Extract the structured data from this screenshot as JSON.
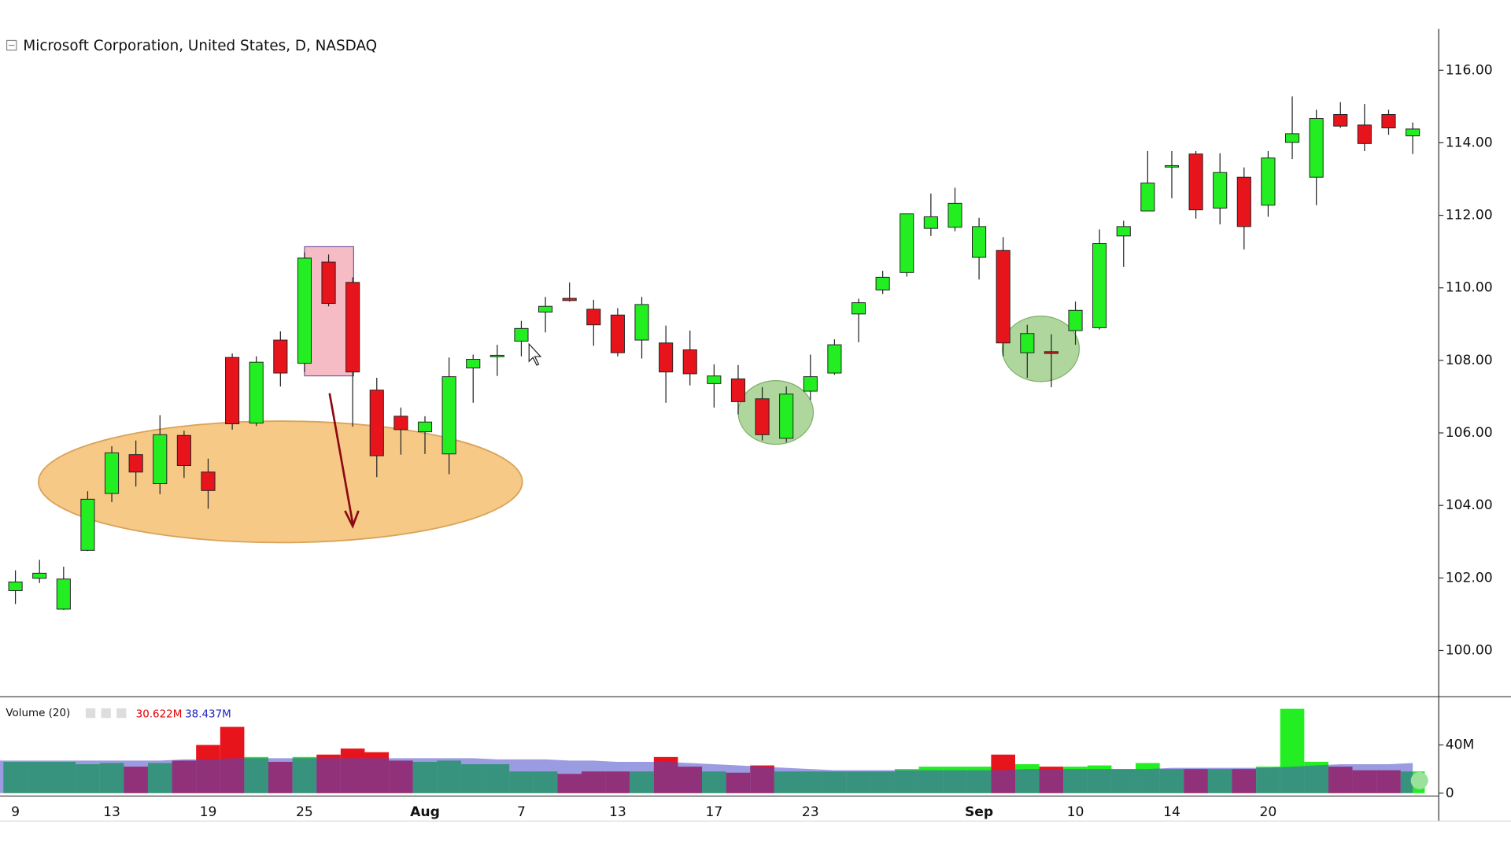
{
  "chart_data": [
    {
      "type": "candlestick",
      "title": "Microsoft Corporation, United States, D, NASDAQ",
      "categories": [
        "9",
        null,
        null,
        null,
        "13",
        null,
        null,
        null,
        "19",
        null,
        null,
        null,
        "25",
        null,
        null,
        null,
        null,
        "Aug",
        null,
        null,
        null,
        "7",
        null,
        null,
        null,
        "13",
        null,
        null,
        null,
        "17",
        null,
        null,
        null,
        "23",
        null,
        null,
        null,
        null,
        null,
        null,
        "Sep",
        null,
        null,
        null,
        "10",
        null,
        null,
        null,
        "14",
        null,
        null,
        null,
        "20",
        null,
        null,
        null,
        null,
        null,
        null
      ],
      "open": [
        101.65,
        101.99,
        101.14,
        102.76,
        104.33,
        105.4,
        104.6,
        105.93,
        104.92,
        108.08,
        106.27,
        108.56,
        107.92,
        110.71,
        110.15,
        107.18,
        106.46,
        106.03,
        105.42,
        107.79,
        108.12,
        108.53,
        109.33,
        109.71,
        109.41,
        109.25,
        108.56,
        108.48,
        108.29,
        107.36,
        107.49,
        106.94,
        105.85,
        107.15,
        107.65,
        109.28,
        109.94,
        110.42,
        111.64,
        111.67,
        110.84,
        111.03,
        108.21,
        108.24,
        108.82,
        108.9,
        111.43,
        112.12,
        113.35,
        113.69,
        112.2,
        113.05,
        112.28,
        114.01,
        113.05,
        114.78,
        114.49,
        114.78,
        114.19
      ],
      "high": [
        102.21,
        102.5,
        102.31,
        104.39,
        105.63,
        105.79,
        106.49,
        106.06,
        105.29,
        108.19,
        108.11,
        108.8,
        110.98,
        110.92,
        110.29,
        107.52,
        106.7,
        106.46,
        108.08,
        108.16,
        108.43,
        109.09,
        109.75,
        110.15,
        109.67,
        109.44,
        109.75,
        108.96,
        108.82,
        107.89,
        107.87,
        107.26,
        107.28,
        108.16,
        108.58,
        109.7,
        110.47,
        112.04,
        112.6,
        112.76,
        111.93,
        111.4,
        108.98,
        108.72,
        109.62,
        111.61,
        111.85,
        113.77,
        113.77,
        113.77,
        113.71,
        113.32,
        113.77,
        115.28,
        114.91,
        115.12,
        115.07,
        114.91,
        114.56
      ],
      "low": [
        101.28,
        101.86,
        101.12,
        102.74,
        104.09,
        104.52,
        104.31,
        104.76,
        103.91,
        106.09,
        106.19,
        107.28,
        107.68,
        109.49,
        106.17,
        104.78,
        105.4,
        105.42,
        104.86,
        106.83,
        107.57,
        108.11,
        108.77,
        109.62,
        108.4,
        108.11,
        108.05,
        106.83,
        107.31,
        106.7,
        106.51,
        105.79,
        105.74,
        106.91,
        107.6,
        108.5,
        109.83,
        110.31,
        111.43,
        111.56,
        110.23,
        108.11,
        107.52,
        107.26,
        108.43,
        108.85,
        110.58,
        112.12,
        112.47,
        111.91,
        111.75,
        111.06,
        111.96,
        113.55,
        112.28,
        114.41,
        113.77,
        114.22,
        113.69
      ],
      "close": [
        101.89,
        102.13,
        101.97,
        104.17,
        105.45,
        104.92,
        105.95,
        105.1,
        104.41,
        106.25,
        107.95,
        107.65,
        110.82,
        109.57,
        107.68,
        105.37,
        106.09,
        106.3,
        107.55,
        108.03,
        108.14,
        108.88,
        109.49,
        109.65,
        108.98,
        108.21,
        109.54,
        107.68,
        107.63,
        107.57,
        106.86,
        105.95,
        107.07,
        107.55,
        108.43,
        109.59,
        110.29,
        112.04,
        111.96,
        112.33,
        111.69,
        108.48,
        108.74,
        108.19,
        109.38,
        111.22,
        111.69,
        112.89,
        113.37,
        112.15,
        113.18,
        111.69,
        113.58,
        114.25,
        114.67,
        114.46,
        113.98,
        114.41,
        114.38
      ],
      "up_color": "#22ee22",
      "down_color": "#e8141c",
      "ylim": [
        98.75,
        117.14
      ],
      "yticks": [
        {
          "value": 100,
          "label": "100.00"
        },
        {
          "value": 102,
          "label": "102.00"
        },
        {
          "value": 104,
          "label": "104.00"
        },
        {
          "value": 106,
          "label": "106.00"
        },
        {
          "value": 108,
          "label": "108.00"
        },
        {
          "value": 110,
          "label": "110.00"
        },
        {
          "value": 112,
          "label": "112.00"
        },
        {
          "value": 114,
          "label": "114.00"
        },
        {
          "value": 116,
          "label": "116.00"
        }
      ]
    },
    {
      "type": "volume",
      "title": "Volume (20)",
      "readouts": [
        {
          "label": "30.622M",
          "color": "#e00000"
        },
        {
          "label": "38.437M",
          "color": "#2020c0"
        }
      ],
      "values": [
        26,
        26,
        26,
        24,
        25,
        22,
        25,
        27,
        40,
        55,
        30,
        26,
        30,
        32,
        37,
        34,
        27,
        26,
        27,
        24,
        24,
        18,
        18,
        16,
        18,
        18,
        18,
        30,
        22,
        18,
        17,
        23,
        18,
        18,
        18,
        18,
        18,
        20,
        22,
        22,
        22,
        32,
        24,
        22,
        22,
        23,
        20,
        25,
        20,
        20,
        20,
        20,
        22,
        70,
        26,
        22,
        19,
        19,
        18
      ],
      "ma_values": [
        27,
        27,
        27,
        27,
        27,
        27,
        27,
        28,
        28,
        29,
        29,
        29,
        29,
        29,
        29,
        29,
        29,
        29,
        29,
        29,
        28,
        28,
        28,
        27,
        27,
        26,
        26,
        26,
        25,
        24,
        23,
        22,
        21,
        20,
        19,
        19,
        19,
        19,
        19,
        19,
        19,
        19,
        20,
        20,
        20,
        20,
        20,
        20,
        21,
        21,
        21,
        21,
        21,
        22,
        23,
        24,
        24,
        24,
        25
      ],
      "ma_color": "#4848c8",
      "ylim": [
        -1.6,
        78.4
      ],
      "yticks": [
        0,
        {
          "value": 40,
          "label": "40M"
        }
      ]
    }
  ]
}
